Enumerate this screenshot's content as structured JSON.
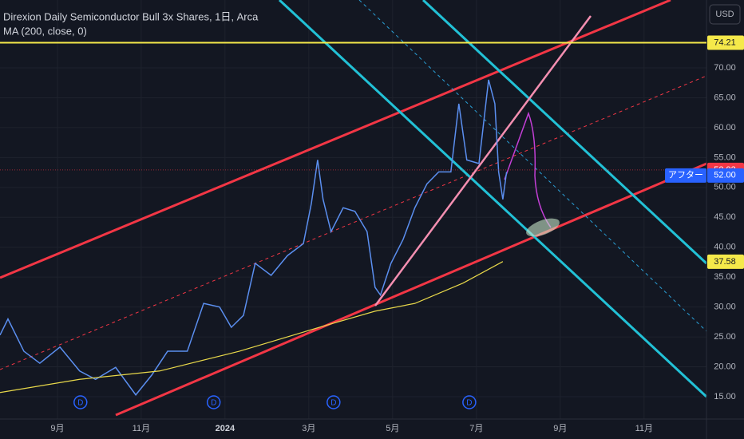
{
  "chart_data": {
    "type": "line",
    "title": "Direxion Daily Semiconductor Bull 3x Shares, 1日, Arca",
    "currency": "USD",
    "series": [
      {
        "color": "#5b8ff0",
        "x": [
          -1.37,
          -1.18,
          -0.8,
          -0.42,
          0.06,
          0.53,
          0.91,
          1.39,
          1.87,
          2.25,
          2.63,
          3.1,
          3.49,
          3.87,
          4.15,
          4.44,
          4.72,
          5.1,
          5.49,
          5.87,
          6.06,
          6.21,
          6.34,
          6.53,
          6.82,
          7.1,
          7.39,
          7.58,
          7.71,
          7.96,
          8.25,
          8.53,
          8.82,
          9.1,
          9.39,
          9.58,
          9.77,
          10.06,
          10.29,
          10.44,
          10.53,
          10.63,
          10.72
        ],
        "values": [
          25.3,
          28,
          22.6,
          20.6,
          23.3,
          19.3,
          17.9,
          19.9,
          15.3,
          18.6,
          22.6,
          22.6,
          30.6,
          30,
          26.6,
          28.6,
          37.3,
          35.3,
          38.6,
          40.6,
          47.3,
          54.6,
          48,
          42.6,
          46.6,
          46,
          42.6,
          33.3,
          32,
          37.3,
          41.3,
          46.6,
          50.6,
          52.6,
          52.6,
          64,
          54.6,
          54,
          68,
          64,
          52.6,
          48,
          52.6
        ]
      },
      {
        "name": "MA (200, close, 0)",
        "color": "#e8d84a",
        "x": [
          -1.37,
          0.53,
          2.44,
          4.34,
          6.25,
          7.58,
          8.53,
          9.68,
          10.63
        ],
        "values": [
          15.7,
          17.9,
          19.3,
          22.6,
          26.6,
          29.3,
          30.6,
          34,
          37.6
        ]
      }
    ],
    "xlim": [
      -1.37,
      15.49
    ],
    "xticks": [
      {
        "value": 0,
        "label": "9月"
      },
      {
        "value": 2,
        "label": "11月"
      },
      {
        "value": 4,
        "label": "2024"
      },
      {
        "value": 6,
        "label": "3月"
      },
      {
        "value": 8,
        "label": "5月"
      },
      {
        "value": 10,
        "label": "7月"
      },
      {
        "value": 12,
        "label": "9月"
      },
      {
        "value": 14,
        "label": "11月"
      }
    ],
    "ylim": [
      11.26,
      81.35
    ],
    "yticks": [
      {
        "value": 15,
        "label": "15.00"
      },
      {
        "value": 20,
        "label": "20.00"
      },
      {
        "value": 25,
        "label": "25.00"
      },
      {
        "value": 30,
        "label": "30.00"
      },
      {
        "value": 35,
        "label": "35.00"
      },
      {
        "value": 40,
        "label": "40.00"
      },
      {
        "value": 45,
        "label": "45.00"
      },
      {
        "value": 50,
        "label": "50.00"
      },
      {
        "value": 55,
        "label": "55.00"
      },
      {
        "value": 60,
        "label": "60.00"
      },
      {
        "value": 65,
        "label": "65.00"
      },
      {
        "value": 70,
        "label": "70.00"
      }
    ],
    "grid": true,
    "price_labels": [
      {
        "value": 74.21,
        "color": "#f5e94a"
      },
      {
        "value": 52.93,
        "color": "#f23645"
      },
      {
        "value": 52,
        "label": "52.00",
        "tag": "アフター",
        "color": "#2962ff"
      },
      {
        "value": 37.58,
        "color": "#f5e94a"
      }
    ],
    "dividends": [
      {
        "x": 0.55,
        "label": "D"
      },
      {
        "x": 3.73,
        "label": "D"
      },
      {
        "x": 6.59,
        "label": "D"
      },
      {
        "x": 9.83,
        "label": "D"
      }
    ]
  }
}
